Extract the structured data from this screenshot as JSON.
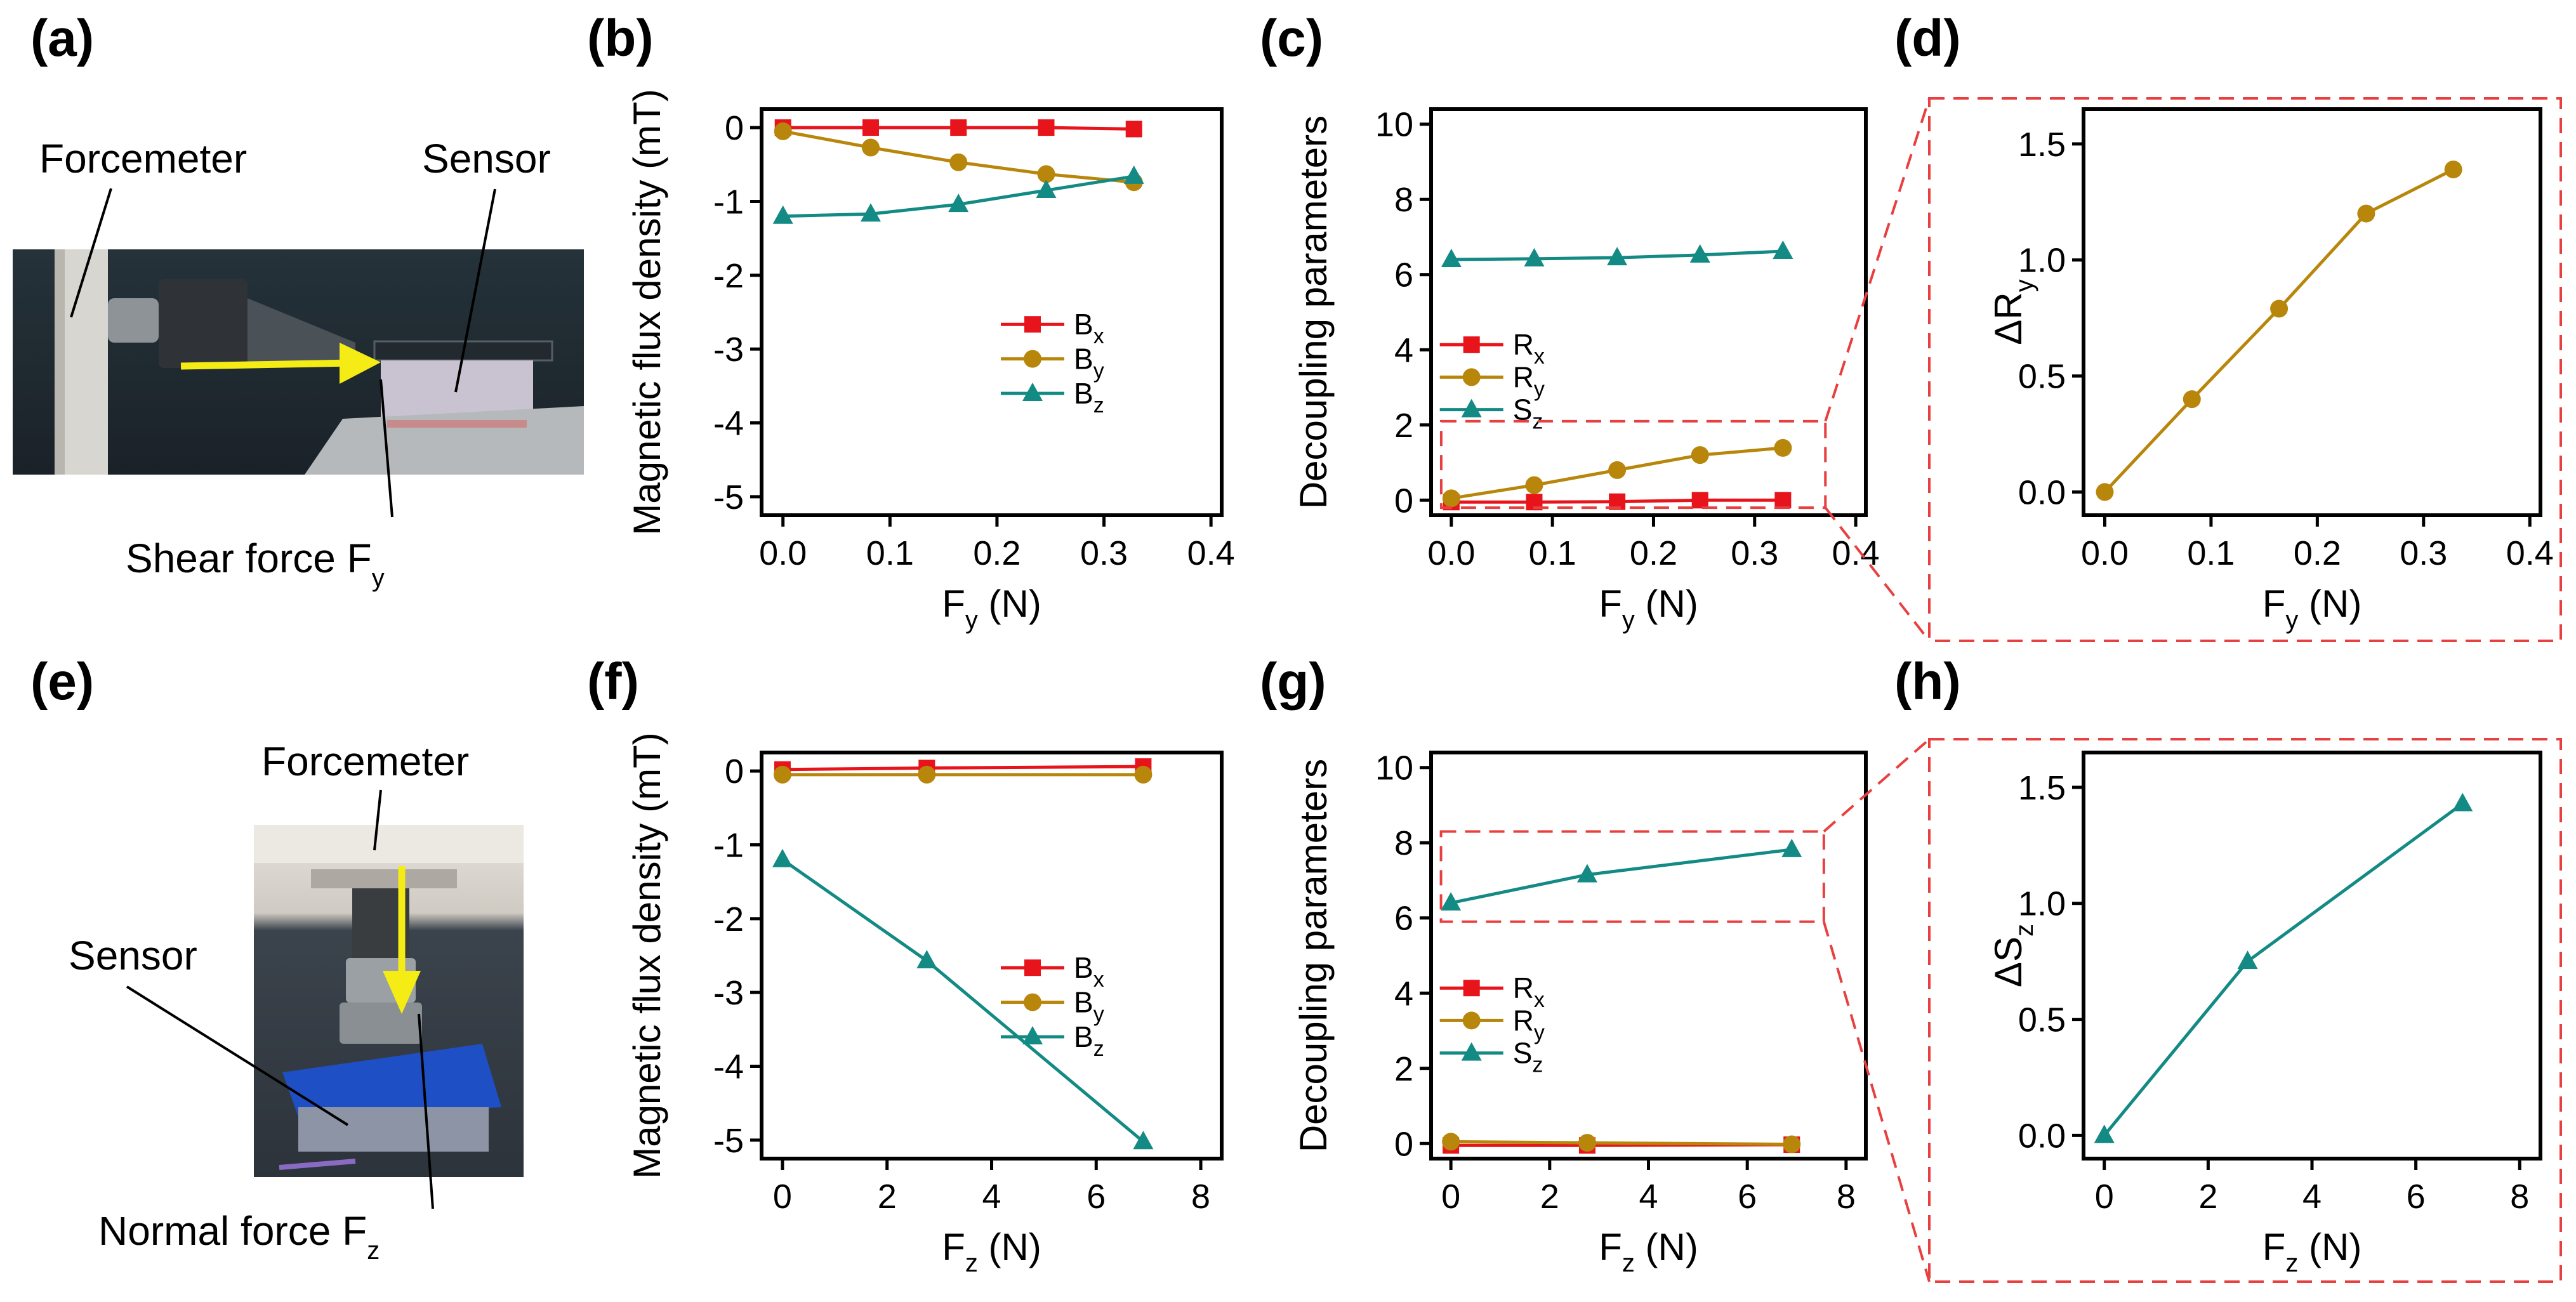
{
  "colors": {
    "red": "#e8141b",
    "gold": "#b8860b",
    "teal": "#138a84",
    "dashed": "#e84040",
    "arrow": "#f4ec14"
  },
  "photos": [
    {
      "id": "a",
      "panel_label": "(a)",
      "labels": {
        "forcemeter": "Forcemeter",
        "sensor": "Sensor",
        "force_main": "Shear force F",
        "force_sub": "y"
      }
    },
    {
      "id": "e",
      "panel_label": "(e)",
      "labels": {
        "forcemeter": "Forcemeter",
        "sensor": "Sensor",
        "force_main": "Normal force F",
        "force_sub": "z"
      }
    }
  ],
  "chart_data": [
    {
      "id": "b",
      "panel_label": "(b)",
      "type": "line",
      "xlabel_main": "F",
      "xlabel_sub": "y",
      "xlabel_tail": " (N)",
      "ylabel": "Magnetic flux density (mT)",
      "xlim": [
        -0.02,
        0.41
      ],
      "ylim": [
        -5.25,
        0.25
      ],
      "xticks": [
        "0.0",
        "0.1",
        "0.2",
        "0.3",
        "0.4"
      ],
      "yticks": [
        "0",
        "-1",
        "-2",
        "-3",
        "-4",
        "-5"
      ],
      "legend_position": "right",
      "series": [
        {
          "name": "B",
          "sub": "x",
          "color": "red",
          "marker": "square",
          "x": [
            0,
            0.082,
            0.164,
            0.246,
            0.328
          ],
          "y": [
            0.0,
            0.0,
            0.0,
            0.0,
            -0.02
          ]
        },
        {
          "name": "B",
          "sub": "y",
          "color": "gold",
          "marker": "circle",
          "x": [
            0,
            0.082,
            0.164,
            0.246,
            0.328
          ],
          "y": [
            -0.05,
            -0.27,
            -0.47,
            -0.63,
            -0.74
          ]
        },
        {
          "name": "B",
          "sub": "z",
          "color": "teal",
          "marker": "triangle",
          "x": [
            0,
            0.082,
            0.164,
            0.246,
            0.328
          ],
          "y": [
            -1.2,
            -1.17,
            -1.04,
            -0.85,
            -0.66
          ]
        }
      ]
    },
    {
      "id": "c",
      "panel_label": "(c)",
      "type": "line",
      "xlabel_main": "F",
      "xlabel_sub": "y",
      "xlabel_tail": " (N)",
      "ylabel": "Decoupling parameters",
      "xlim": [
        -0.02,
        0.41
      ],
      "ylim": [
        -0.4,
        10.4
      ],
      "xticks": [
        "0.0",
        "0.1",
        "0.2",
        "0.3",
        "0.4"
      ],
      "yticks": [
        "0",
        "2",
        "4",
        "6",
        "8",
        "10"
      ],
      "legend_position": "middle-left",
      "zoom_box": {
        "x": [
          -0.01,
          0.37
        ],
        "y": [
          -0.2,
          2.1
        ]
      },
      "series": [
        {
          "name": "R",
          "sub": "x",
          "color": "red",
          "marker": "square",
          "x": [
            0,
            0.082,
            0.164,
            0.246,
            0.328
          ],
          "y": [
            -0.05,
            -0.05,
            -0.04,
            0.0,
            0.0
          ]
        },
        {
          "name": "R",
          "sub": "y",
          "color": "gold",
          "marker": "circle",
          "x": [
            0,
            0.082,
            0.164,
            0.246,
            0.328
          ],
          "y": [
            0.05,
            0.4,
            0.8,
            1.2,
            1.39
          ]
        },
        {
          "name": "S",
          "sub": "z",
          "color": "teal",
          "marker": "triangle",
          "x": [
            0,
            0.082,
            0.164,
            0.246,
            0.328
          ],
          "y": [
            6.4,
            6.42,
            6.45,
            6.52,
            6.62
          ]
        }
      ]
    },
    {
      "id": "d",
      "panel_label": "(d)",
      "type": "line",
      "xlabel_main": "F",
      "xlabel_sub": "y",
      "xlabel_tail": " (N)",
      "ylabel_main": "ΔR",
      "ylabel_sub": "y",
      "xlim": [
        -0.02,
        0.41
      ],
      "ylim": [
        -0.1,
        1.65
      ],
      "xticks": [
        "0.0",
        "0.1",
        "0.2",
        "0.3",
        "0.4"
      ],
      "yticks": [
        "0.0",
        "0.5",
        "1.0",
        "1.5"
      ],
      "series": [
        {
          "name": "ΔR",
          "sub": "y",
          "color": "gold",
          "marker": "circle",
          "x": [
            0,
            0.082,
            0.164,
            0.246,
            0.328
          ],
          "y": [
            0.0,
            0.4,
            0.79,
            1.2,
            1.39
          ]
        }
      ]
    },
    {
      "id": "f",
      "panel_label": "(f)",
      "type": "line",
      "xlabel_main": "F",
      "xlabel_sub": "z",
      "xlabel_tail": " (N)",
      "ylabel": "Magnetic flux density (mT)",
      "xlim": [
        -0.4,
        8.4
      ],
      "ylim": [
        -5.25,
        0.25
      ],
      "xticks": [
        "0",
        "2",
        "4",
        "6",
        "8"
      ],
      "yticks": [
        "0",
        "-1",
        "-2",
        "-3",
        "-4",
        "-5"
      ],
      "legend_position": "right",
      "series": [
        {
          "name": "B",
          "sub": "x",
          "color": "red",
          "marker": "square",
          "x": [
            0,
            2.76,
            6.9
          ],
          "y": [
            0.02,
            0.04,
            0.06
          ]
        },
        {
          "name": "B",
          "sub": "y",
          "color": "gold",
          "marker": "circle",
          "x": [
            0,
            2.76,
            6.9
          ],
          "y": [
            -0.05,
            -0.05,
            -0.05
          ]
        },
        {
          "name": "B",
          "sub": "z",
          "color": "teal",
          "marker": "triangle",
          "x": [
            0,
            2.76,
            6.9
          ],
          "y": [
            -1.2,
            -2.57,
            -5.02
          ]
        }
      ]
    },
    {
      "id": "g",
      "panel_label": "(g)",
      "type": "line",
      "xlabel_main": "F",
      "xlabel_sub": "z",
      "xlabel_tail": " (N)",
      "ylabel": "Decoupling parameters",
      "xlim": [
        -0.4,
        8.4
      ],
      "ylim": [
        -0.4,
        10.4
      ],
      "xticks": [
        "0",
        "2",
        "4",
        "6",
        "8"
      ],
      "yticks": [
        "0",
        "2",
        "4",
        "6",
        "8",
        "10"
      ],
      "legend_position": "middle-left",
      "zoom_box": {
        "x": [
          -0.2,
          7.55
        ],
        "y": [
          5.9,
          8.3
        ]
      },
      "series": [
        {
          "name": "R",
          "sub": "x",
          "color": "red",
          "marker": "square",
          "x": [
            0,
            2.76,
            6.9
          ],
          "y": [
            -0.05,
            -0.05,
            -0.03
          ]
        },
        {
          "name": "R",
          "sub": "y",
          "color": "gold",
          "marker": "circle",
          "x": [
            0,
            2.76,
            6.9
          ],
          "y": [
            0.05,
            0.02,
            -0.02
          ]
        },
        {
          "name": "S",
          "sub": "z",
          "color": "teal",
          "marker": "triangle",
          "x": [
            0,
            2.76,
            6.9
          ],
          "y": [
            6.4,
            7.15,
            7.82
          ]
        }
      ]
    },
    {
      "id": "h",
      "panel_label": "(h)",
      "type": "line",
      "xlabel_main": "F",
      "xlabel_sub": "z",
      "xlabel_tail": " (N)",
      "ylabel_main": "ΔS",
      "ylabel_sub": "z",
      "xlim": [
        -0.4,
        8.4
      ],
      "ylim": [
        -0.1,
        1.65
      ],
      "xticks": [
        "0",
        "2",
        "4",
        "6",
        "8"
      ],
      "yticks": [
        "0.0",
        "0.5",
        "1.0",
        "1.5"
      ],
      "series": [
        {
          "name": "ΔS",
          "sub": "z",
          "color": "teal",
          "marker": "triangle",
          "x": [
            0,
            2.76,
            6.9
          ],
          "y": [
            0.0,
            0.75,
            1.43
          ]
        }
      ]
    }
  ]
}
